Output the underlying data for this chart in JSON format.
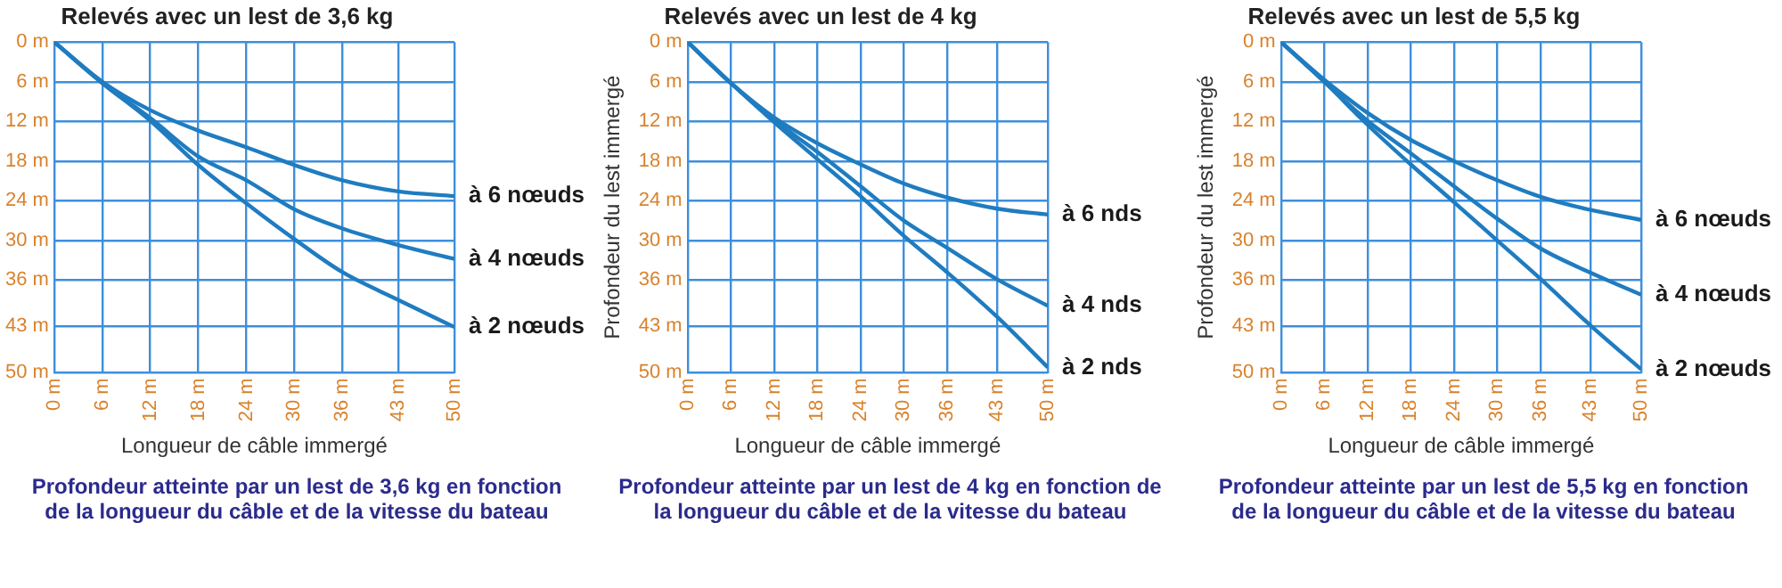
{
  "chart_data": [
    {
      "type": "line",
      "title": "Relevés avec un lest de 3,6 kg",
      "xlabel": "Longueur de câble immergé",
      "annotations": [
        "Profondeur atteinte par un lest de 3,6 kg en fonction de la longueur du câble et de la vitesse du bateau"
      ],
      "x": [
        0,
        6,
        12,
        18,
        24,
        30,
        36,
        43,
        50
      ],
      "series": [
        {
          "name": "à 6 nœuds",
          "color": "#1f7cc0",
          "values": [
            0,
            6,
            10.3,
            13.4,
            15.9,
            18.6,
            20.9,
            22.6,
            23.3
          ]
        },
        {
          "name": "à 4 nœuds",
          "color": "#1f7cc0",
          "values": [
            0,
            6.2,
            11.5,
            17.3,
            20.9,
            25.3,
            28.2,
            30.7,
            32.8
          ]
        },
        {
          "name": "à 2 nœuds",
          "color": "#1f7cc0",
          "values": [
            0,
            6.2,
            11.9,
            18.6,
            24.4,
            29.8,
            34.8,
            39,
            43.1
          ]
        }
      ],
      "xlim": [
        0,
        50
      ],
      "ylim": [
        50,
        0
      ],
      "xticks": [
        {
          "value": 0,
          "label": "0 m"
        },
        {
          "value": 6,
          "label": "6 m"
        },
        {
          "value": 12,
          "label": "12 m"
        },
        {
          "value": 18,
          "label": "18 m"
        },
        {
          "value": 24,
          "label": "24 m"
        },
        {
          "value": 30,
          "label": "30 m"
        },
        {
          "value": 36,
          "label": "36 m"
        },
        {
          "value": 43,
          "label": "43 m"
        },
        {
          "value": 50,
          "label": "50 m"
        }
      ],
      "yticks": [
        {
          "value": 0,
          "label": "0 m"
        },
        {
          "value": 6,
          "label": "6 m"
        },
        {
          "value": 12,
          "label": "12 m"
        },
        {
          "value": 18,
          "label": "18 m"
        },
        {
          "value": 24,
          "label": "24 m"
        },
        {
          "value": 30,
          "label": "30 m"
        },
        {
          "value": 36,
          "label": "36 m"
        },
        {
          "value": 43,
          "label": "43 m"
        },
        {
          "value": 50,
          "label": "50 m"
        }
      ],
      "grid": true,
      "legend": false,
      "marker": "none",
      "line_style": "solid"
    },
    {
      "type": "line",
      "title": "Relevés avec un lest de 4 kg",
      "xlabel": "Longueur de câble immergé",
      "ylabel": "Profondeur du lest immergé",
      "annotations": [
        "Profondeur atteinte par un lest de 4 kg en fonction de la longueur du câble et de la vitesse du bateau"
      ],
      "x": [
        0,
        6,
        12,
        18,
        24,
        30,
        36,
        43,
        50
      ],
      "series": [
        {
          "name": "à 6 nds",
          "color": "#1f7cc0",
          "values": [
            0,
            6.2,
            11.4,
            15.3,
            18.5,
            21.4,
            23.5,
            25.2,
            26.1
          ]
        },
        {
          "name": "à 4 nds",
          "color": "#1f7cc0",
          "values": [
            0,
            6.2,
            11.8,
            16.6,
            21.8,
            27,
            31.1,
            35.9,
            39.9
          ]
        },
        {
          "name": "à 2 nds",
          "color": "#1f7cc0",
          "values": [
            0,
            6.2,
            12.1,
            17.7,
            23.3,
            29.3,
            34.8,
            41.6,
            49.2
          ]
        }
      ],
      "xlim": [
        0,
        50
      ],
      "ylim": [
        50,
        0
      ],
      "xticks": [
        {
          "value": 0,
          "label": "0 m"
        },
        {
          "value": 6,
          "label": "6 m"
        },
        {
          "value": 12,
          "label": "12 m"
        },
        {
          "value": 18,
          "label": "18 m"
        },
        {
          "value": 24,
          "label": "24 m"
        },
        {
          "value": 30,
          "label": "30 m"
        },
        {
          "value": 36,
          "label": "36 m"
        },
        {
          "value": 43,
          "label": "43 m"
        },
        {
          "value": 50,
          "label": "50 m"
        }
      ],
      "yticks": [
        {
          "value": 0,
          "label": "0 m"
        },
        {
          "value": 6,
          "label": "6 m"
        },
        {
          "value": 12,
          "label": "12 m"
        },
        {
          "value": 18,
          "label": "18 m"
        },
        {
          "value": 24,
          "label": "24 m"
        },
        {
          "value": 30,
          "label": "30 m"
        },
        {
          "value": 36,
          "label": "36 m"
        },
        {
          "value": 43,
          "label": "43 m"
        },
        {
          "value": 50,
          "label": "50 m"
        }
      ],
      "grid": true,
      "legend": false,
      "marker": "none",
      "line_style": "solid"
    },
    {
      "type": "line",
      "title": "Relevés avec un lest de 5,5 kg",
      "xlabel": "Longueur de câble immergé",
      "ylabel": "Profondeur du lest immergé",
      "annotations": [
        "Profondeur atteinte par un lest de 5,5 kg en fonction de la longueur du câble et de la vitesse du bateau"
      ],
      "x": [
        0,
        6,
        12,
        18,
        24,
        30,
        36,
        43,
        50
      ],
      "series": [
        {
          "name": "à 6 nœuds",
          "color": "#1f7cc0",
          "values": [
            0,
            5.7,
            10.7,
            14.8,
            18,
            20.9,
            23.4,
            25.4,
            26.9
          ]
        },
        {
          "name": "à 4 nœuds",
          "color": "#1f7cc0",
          "values": [
            0,
            6,
            11.9,
            16.8,
            21.8,
            26.7,
            31.2,
            34.9,
            38.2
          ]
        },
        {
          "name": "à 2 nœuds",
          "color": "#1f7cc0",
          "values": [
            0,
            6,
            12.5,
            18.5,
            24.2,
            30,
            35.8,
            42.9,
            49.5
          ]
        }
      ],
      "xlim": [
        0,
        50
      ],
      "ylim": [
        50,
        0
      ],
      "xticks": [
        {
          "value": 0,
          "label": "0 m"
        },
        {
          "value": 6,
          "label": "6 m"
        },
        {
          "value": 12,
          "label": "12 m"
        },
        {
          "value": 18,
          "label": "18 m"
        },
        {
          "value": 24,
          "label": "24 m"
        },
        {
          "value": 30,
          "label": "30 m"
        },
        {
          "value": 36,
          "label": "36 m"
        },
        {
          "value": 43,
          "label": "43 m"
        },
        {
          "value": 50,
          "label": "50 m"
        }
      ],
      "yticks": [
        {
          "value": 0,
          "label": "0 m"
        },
        {
          "value": 6,
          "label": "6 m"
        },
        {
          "value": 12,
          "label": "12 m"
        },
        {
          "value": 18,
          "label": "18 m"
        },
        {
          "value": 24,
          "label": "24 m"
        },
        {
          "value": 30,
          "label": "30 m"
        },
        {
          "value": 36,
          "label": "36 m"
        },
        {
          "value": 43,
          "label": "43 m"
        },
        {
          "value": 50,
          "label": "50 m"
        }
      ],
      "grid": true,
      "legend": false,
      "marker": "none",
      "line_style": "solid"
    }
  ]
}
